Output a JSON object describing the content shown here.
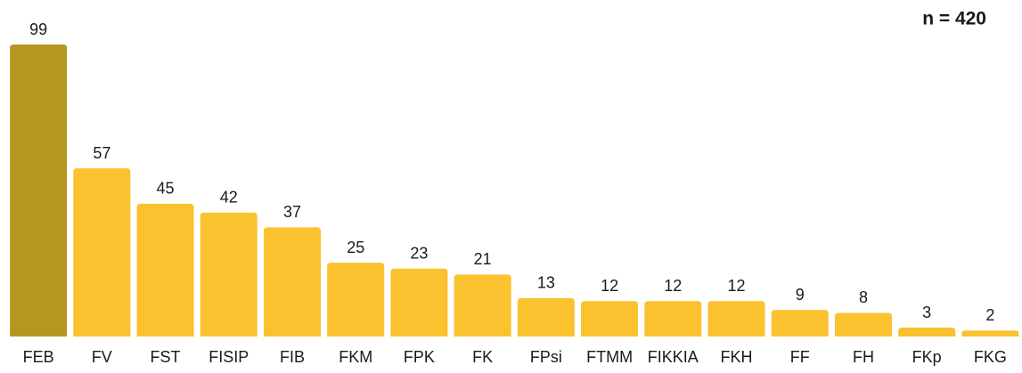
{
  "chart_data": {
    "type": "bar",
    "annotation": "n = 420",
    "categories": [
      "FEB",
      "FV",
      "FST",
      "FISIP",
      "FIB",
      "FKM",
      "FPK",
      "FK",
      "FPsi",
      "FTMM",
      "FIKKIA",
      "FKH",
      "FF",
      "FH",
      "FKp",
      "FKG"
    ],
    "values": [
      99,
      57,
      45,
      42,
      37,
      25,
      23,
      21,
      13,
      12,
      12,
      12,
      9,
      8,
      3,
      2
    ],
    "colors": [
      "#b5961f",
      "#fac22e",
      "#fac22e",
      "#fac22e",
      "#fac22e",
      "#fac22e",
      "#fac22e",
      "#fac22e",
      "#fac22e",
      "#fac22e",
      "#fac22e",
      "#fac22e",
      "#fac22e",
      "#fac22e",
      "#fac22e",
      "#fac22e"
    ]
  }
}
